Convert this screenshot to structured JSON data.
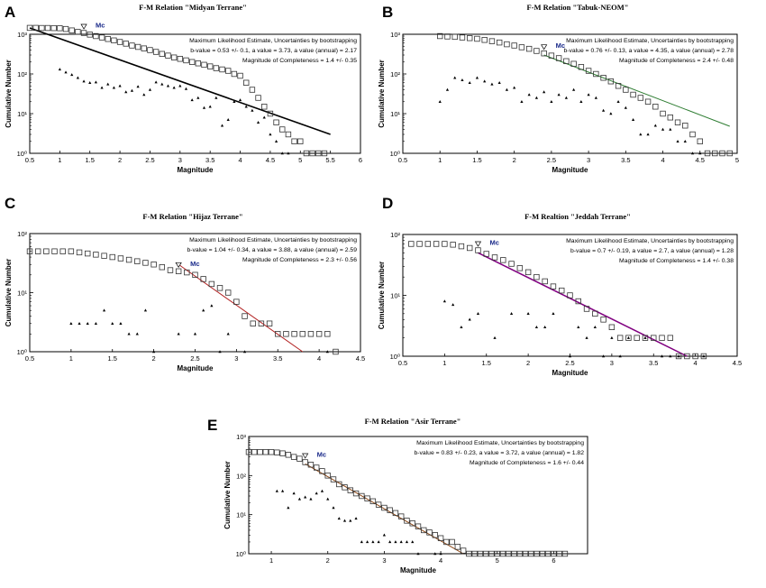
{
  "chart_data": [
    {
      "type": "scatter",
      "panel_label": "A",
      "title": "F-M Relation \"Midyan Terrane\"",
      "xlabel": "Magnitude",
      "ylabel": "Cumulative Number",
      "xlim": [
        0.5,
        6
      ],
      "x_ticks": [
        0.5,
        1,
        1.5,
        2,
        2.5,
        3,
        3.5,
        4,
        4.5,
        5,
        5.5,
        6
      ],
      "x_tick_labels": [
        "0.5",
        "1",
        "1.5",
        "2",
        "2.5",
        "3",
        "3.5",
        "4",
        "4.5",
        "5",
        "5.5",
        "6"
      ],
      "ylog_decades": [
        0,
        3
      ],
      "y_ticks": [
        0,
        1,
        2,
        3
      ],
      "y_tick_labels": [
        "10⁰",
        "10¹",
        "10²",
        "10³"
      ],
      "annotation": [
        "Maximum Likelihood Estimate, Uncertainties by bootstrapping",
        "b-value = 0.53 +/- 0.1,  a value = 3.73,  a value (annual) = 2.17",
        "Magnitude of Completeness = 1.4 +/- 0.35"
      ],
      "mc_label": "Mc",
      "mc_value": 1.4,
      "fit": {
        "x": [
          0.5,
          5.5
        ],
        "y": [
          1440,
          3.0
        ],
        "color": "#000000",
        "width": 1.6
      },
      "cumulative": {
        "x": [
          0.5,
          0.6,
          0.7,
          0.8,
          0.9,
          1.0,
          1.1,
          1.2,
          1.3,
          1.4,
          1.5,
          1.6,
          1.7,
          1.8,
          1.9,
          2.0,
          2.1,
          2.2,
          2.3,
          2.4,
          2.5,
          2.6,
          2.7,
          2.8,
          2.9,
          3.0,
          3.1,
          3.2,
          3.3,
          3.4,
          3.5,
          3.6,
          3.7,
          3.8,
          3.9,
          4.0,
          4.1,
          4.2,
          4.3,
          4.4,
          4.5,
          4.6,
          4.7,
          4.8,
          4.9,
          5.0,
          5.1,
          5.2,
          5.3,
          5.4
        ],
        "y": [
          1450,
          1450,
          1440,
          1440,
          1430,
          1420,
          1360,
          1250,
          1150,
          1080,
          980,
          900,
          830,
          760,
          700,
          640,
          580,
          520,
          480,
          440,
          400,
          360,
          320,
          290,
          260,
          240,
          220,
          200,
          185,
          170,
          155,
          140,
          130,
          120,
          100,
          90,
          60,
          40,
          25,
          15,
          10,
          6,
          4,
          3,
          2,
          2,
          1,
          1,
          1,
          1
        ]
      },
      "noncumulative": {
        "x": [
          1.0,
          1.1,
          1.2,
          1.3,
          1.4,
          1.5,
          1.6,
          1.7,
          1.8,
          1.9,
          2.0,
          2.1,
          2.2,
          2.3,
          2.4,
          2.5,
          2.6,
          2.7,
          2.8,
          2.9,
          3.0,
          3.1,
          3.2,
          3.3,
          3.4,
          3.5,
          3.6,
          3.7,
          3.8,
          3.9,
          4.0,
          4.1,
          4.2,
          4.3,
          4.4,
          4.5,
          4.6,
          4.7,
          4.8
        ],
        "y": [
          130,
          110,
          95,
          80,
          65,
          60,
          62,
          45,
          55,
          45,
          50,
          35,
          38,
          48,
          30,
          40,
          62,
          55,
          50,
          45,
          50,
          42,
          22,
          25,
          14,
          15,
          25,
          5,
          7,
          20,
          22,
          15,
          12,
          6,
          8,
          3,
          2,
          1,
          1
        ]
      }
    },
    {
      "type": "scatter",
      "panel_label": "B",
      "title": "F-M Relation \"Tabuk-NEOM\"",
      "xlabel": "Magnitude",
      "ylabel": "Cumulative Number",
      "xlim": [
        0.5,
        5
      ],
      "x_ticks": [
        0.5,
        1,
        1.5,
        2,
        2.5,
        3,
        3.5,
        4,
        4.5,
        5
      ],
      "x_tick_labels": [
        "0.5",
        "1",
        "1.5",
        "2",
        "2.5",
        "3",
        "3.5",
        "4",
        "4.5",
        "5"
      ],
      "ylog_decades": [
        0,
        3
      ],
      "y_ticks": [
        0,
        1,
        2,
        3
      ],
      "y_tick_labels": [
        "10⁰",
        "10¹",
        "10²",
        "10³"
      ],
      "annotation": [
        "Maximum Likelihood Estimate, Uncertainties by bootstrapping",
        "b-value = 0.76 +/- 0.13,  a value = 4.35,  a value (annual) = 2.78",
        "Magnitude of Completeness = 2.4 +/- 0.48"
      ],
      "mc_label": "Mc",
      "mc_value": 2.4,
      "fit": {
        "x": [
          2.4,
          4.9
        ],
        "y": [
          300,
          4.8
        ],
        "color": "#2e7d32",
        "width": 1
      },
      "cumulative": {
        "x": [
          1.0,
          1.1,
          1.2,
          1.3,
          1.4,
          1.5,
          1.6,
          1.7,
          1.8,
          1.9,
          2.0,
          2.1,
          2.2,
          2.3,
          2.4,
          2.5,
          2.6,
          2.7,
          2.8,
          2.9,
          3.0,
          3.1,
          3.2,
          3.3,
          3.4,
          3.5,
          3.6,
          3.7,
          3.8,
          3.9,
          4.0,
          4.1,
          4.2,
          4.3,
          4.4,
          4.5,
          4.6,
          4.7,
          4.8,
          4.9
        ],
        "y": [
          900,
          880,
          860,
          830,
          800,
          770,
          720,
          670,
          620,
          560,
          520,
          470,
          430,
          380,
          330,
          290,
          250,
          210,
          180,
          150,
          120,
          100,
          80,
          65,
          50,
          40,
          30,
          25,
          20,
          15,
          10,
          8,
          6,
          5,
          3,
          2,
          1,
          1,
          1,
          1
        ]
      },
      "noncumulative": {
        "x": [
          1.0,
          1.1,
          1.2,
          1.3,
          1.4,
          1.5,
          1.6,
          1.7,
          1.8,
          1.9,
          2.0,
          2.1,
          2.2,
          2.3,
          2.4,
          2.5,
          2.6,
          2.7,
          2.8,
          2.9,
          3.0,
          3.1,
          3.2,
          3.3,
          3.4,
          3.5,
          3.6,
          3.7,
          3.8,
          3.9,
          4.0,
          4.1,
          4.2,
          4.3,
          4.4,
          4.5
        ],
        "y": [
          20,
          40,
          80,
          70,
          60,
          80,
          65,
          55,
          60,
          40,
          45,
          20,
          30,
          25,
          35,
          20,
          30,
          25,
          40,
          20,
          30,
          25,
          12,
          10,
          20,
          14,
          7,
          3,
          3,
          5,
          4,
          4,
          2,
          2,
          1,
          1
        ]
      }
    },
    {
      "type": "scatter",
      "panel_label": "C",
      "title": "F-M Relation \"Hijaz Terrane\"",
      "xlabel": "Magnitude",
      "ylabel": "Cumulative Number",
      "xlim": [
        0.5,
        4.5
      ],
      "x_ticks": [
        0.5,
        1,
        1.5,
        2,
        2.5,
        3,
        3.5,
        4,
        4.5
      ],
      "x_tick_labels": [
        "0.5",
        "1",
        "1.5",
        "2",
        "2.5",
        "3",
        "3.5",
        "4",
        "4.5"
      ],
      "ylog_decades": [
        0,
        2
      ],
      "y_ticks": [
        0,
        1,
        2
      ],
      "y_tick_labels": [
        "10⁰",
        "10¹",
        "10²"
      ],
      "annotation": [
        "Maximum Likelihood Estimate, Uncertainties by bootstrapping",
        "b-value = 1.04 +/- 0.34,  a value = 3.88,  a value (annual) = 2.59",
        "Magnitude of Completeness = 2.3 +/- 0.56"
      ],
      "mc_label": "Mc",
      "mc_value": 2.3,
      "fit": {
        "x": [
          2.3,
          3.8
        ],
        "y": [
          30,
          1.0
        ],
        "color": "#b22222",
        "width": 1
      },
      "cumulative": {
        "x": [
          0.5,
          0.6,
          0.7,
          0.8,
          0.9,
          1.0,
          1.1,
          1.2,
          1.3,
          1.4,
          1.5,
          1.6,
          1.7,
          1.8,
          1.9,
          2.0,
          2.1,
          2.2,
          2.3,
          2.4,
          2.5,
          2.6,
          2.7,
          2.8,
          2.9,
          3.0,
          3.1,
          3.2,
          3.3,
          3.4,
          3.5,
          3.6,
          3.7,
          3.8,
          3.9,
          4.0,
          4.1,
          4.2
        ],
        "y": [
          50,
          50,
          50,
          50,
          50,
          50,
          48,
          46,
          44,
          42,
          40,
          38,
          36,
          34,
          32,
          30,
          27,
          24,
          23,
          22,
          20,
          17,
          14,
          12,
          10,
          7,
          4,
          3,
          3,
          3,
          2,
          2,
          2,
          2,
          2,
          2,
          2,
          1
        ]
      },
      "noncumulative": {
        "x": [
          1.0,
          1.1,
          1.2,
          1.3,
          1.4,
          1.5,
          1.6,
          1.7,
          1.8,
          1.9,
          2.0,
          2.3,
          2.5,
          2.6,
          2.7,
          2.8,
          2.9,
          3.1,
          4.1
        ],
        "y": [
          3,
          3,
          3,
          3,
          5,
          3,
          3,
          2,
          2,
          5,
          1,
          2,
          2,
          5,
          6,
          1,
          2,
          1,
          1
        ]
      }
    },
    {
      "type": "scatter",
      "panel_label": "D",
      "title": "F-M Realtion \"Jeddah Terrane\"",
      "xlabel": "Magnitude",
      "ylabel": "Cumulative Number",
      "xlim": [
        0.5,
        4.5
      ],
      "x_ticks": [
        0.5,
        1,
        1.5,
        2,
        2.5,
        3,
        3.5,
        4,
        4.5
      ],
      "x_tick_labels": [
        "0.5",
        "1",
        "1.5",
        "2",
        "2.5",
        "3",
        "3.5",
        "4",
        "4.5"
      ],
      "ylog_decades": [
        0,
        2
      ],
      "y_ticks": [
        0,
        1,
        2
      ],
      "y_tick_labels": [
        "10⁰",
        "10¹",
        "10²"
      ],
      "annotation": [
        "Maximum Likelihood Estimate, Uncertainties by bootstrapping",
        "b-value = 0.7 +/- 0.19,  a value = 2.7,  a value (annual) = 1.28",
        "Magnitude of Completeness = 1.4 +/- 0.38"
      ],
      "mc_label": "Mc",
      "mc_value": 1.4,
      "fit": {
        "x": [
          1.4,
          3.9
        ],
        "y": [
          50,
          1.0
        ],
        "color": "#800080",
        "width": 1.5
      },
      "cumulative": {
        "x": [
          0.6,
          0.7,
          0.8,
          0.9,
          1.0,
          1.1,
          1.2,
          1.3,
          1.4,
          1.5,
          1.6,
          1.7,
          1.8,
          1.9,
          2.0,
          2.1,
          2.2,
          2.3,
          2.4,
          2.5,
          2.6,
          2.7,
          2.8,
          2.9,
          3.0,
          3.1,
          3.2,
          3.3,
          3.4,
          3.5,
          3.6,
          3.7,
          3.8,
          3.9,
          4.0,
          4.1
        ],
        "y": [
          70,
          70,
          70,
          70,
          70,
          68,
          64,
          60,
          55,
          48,
          42,
          38,
          33,
          28,
          24,
          20,
          17,
          14,
          12,
          10,
          8,
          6,
          5,
          4,
          3,
          2,
          2,
          2,
          2,
          2,
          2,
          2,
          1,
          1,
          1,
          1
        ]
      },
      "noncumulative": {
        "x": [
          1.0,
          1.1,
          1.2,
          1.3,
          1.4,
          1.6,
          1.8,
          2.0,
          2.1,
          2.2,
          2.3,
          2.5,
          2.6,
          2.7,
          2.8,
          2.9,
          3.0,
          3.1,
          3.2,
          3.4,
          3.6,
          3.7,
          3.8,
          4.1
        ],
        "y": [
          8,
          7,
          3,
          4,
          5,
          2,
          5,
          5,
          3,
          3,
          5,
          1,
          3,
          2,
          3,
          1,
          2,
          1,
          2,
          2,
          1,
          1,
          1,
          1
        ]
      }
    },
    {
      "type": "scatter",
      "panel_label": "E",
      "title": "F-M Relation \"Asir Terrane\"",
      "xlabel": "Magnitude",
      "ylabel": "Cumulative Number",
      "xlim": [
        0.6,
        6.6
      ],
      "x_ticks": [
        1,
        2,
        3,
        4,
        5,
        6
      ],
      "x_tick_labels": [
        "1",
        "2",
        "3",
        "4",
        "5",
        "6"
      ],
      "ylog_decades": [
        0,
        3
      ],
      "y_ticks": [
        0,
        1,
        2,
        3
      ],
      "y_tick_labels": [
        "10⁰",
        "10¹",
        "10²",
        "10³"
      ],
      "annotation": [
        "Maximum Likelihood Estimate, Uncertainties by bootstrapping",
        "b-value = 0.83 +/- 0.23,  a value = 3.72,  a value (annual) = 1.82",
        "Magnitude of Completeness = 1.6 +/- 0.44"
      ],
      "mc_label": "Mc",
      "mc_value": 1.6,
      "fit": {
        "x": [
          1.6,
          4.4
        ],
        "y": [
          200,
          1.0
        ],
        "color": "#8b4513",
        "width": 1
      },
      "cumulative": {
        "x": [
          0.6,
          0.7,
          0.8,
          0.9,
          1.0,
          1.1,
          1.2,
          1.3,
          1.4,
          1.5,
          1.6,
          1.7,
          1.8,
          1.9,
          2.0,
          2.1,
          2.2,
          2.3,
          2.4,
          2.5,
          2.6,
          2.7,
          2.8,
          2.9,
          3.0,
          3.1,
          3.2,
          3.3,
          3.4,
          3.5,
          3.6,
          3.7,
          3.8,
          3.9,
          4.0,
          4.1,
          4.2,
          4.3,
          4.4,
          4.5,
          4.6,
          4.7,
          4.8,
          4.9,
          5.0,
          5.1,
          5.2,
          5.3,
          5.4,
          5.5,
          5.6,
          5.7,
          5.8,
          5.9,
          6.0,
          6.1,
          6.2
        ],
        "y": [
          400,
          400,
          400,
          400,
          400,
          390,
          370,
          340,
          300,
          270,
          220,
          190,
          160,
          130,
          100,
          80,
          60,
          50,
          42,
          35,
          30,
          26,
          22,
          18,
          15,
          13,
          11,
          9,
          7,
          6,
          5,
          4,
          3.5,
          3,
          2.5,
          2,
          2,
          1.5,
          1.2,
          1,
          1,
          1,
          1,
          1,
          1,
          1,
          1,
          1,
          1,
          1,
          1,
          1,
          1,
          1,
          1,
          1,
          1
        ]
      },
      "noncumulative": {
        "x": [
          1.1,
          1.2,
          1.3,
          1.4,
          1.5,
          1.6,
          1.7,
          1.8,
          1.9,
          2.0,
          2.1,
          2.2,
          2.3,
          2.4,
          2.5,
          2.6,
          2.7,
          2.8,
          2.9,
          3.0,
          3.1,
          3.2,
          3.3,
          3.4,
          3.5,
          3.6,
          3.9,
          4.0
        ],
        "y": [
          40,
          40,
          15,
          35,
          25,
          28,
          25,
          35,
          40,
          25,
          15,
          8,
          7,
          7,
          8,
          2,
          2,
          2,
          2,
          3,
          2,
          2,
          2,
          2,
          2,
          1,
          1,
          1
        ]
      }
    }
  ]
}
